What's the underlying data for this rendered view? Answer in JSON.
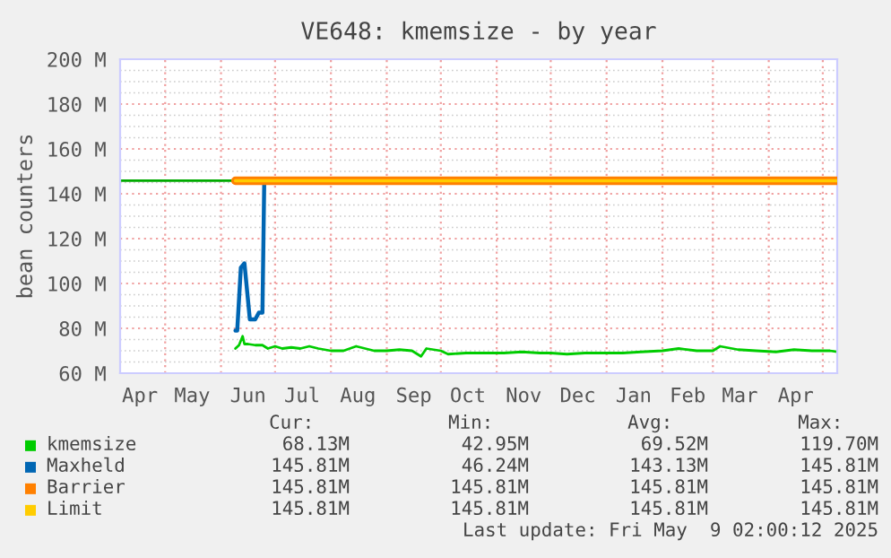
{
  "chart_data": {
    "type": "line",
    "title": "VE648: kmemsize - by year",
    "ylabel": "bean counters",
    "xlim": [
      "2024-04-06",
      "2025-05-09"
    ],
    "xticks": [
      {
        "value": "2024-04-17",
        "label": "Apr"
      },
      {
        "value": "2024-05-01",
        "label": null
      },
      {
        "value": "2024-05-16",
        "label": "May"
      },
      {
        "value": "2024-06-01",
        "label": null
      },
      {
        "value": "2024-06-16",
        "label": "Jun"
      },
      {
        "value": "2024-07-01",
        "label": null
      },
      {
        "value": "2024-07-16",
        "label": "Jul"
      },
      {
        "value": "2024-08-01",
        "label": null
      },
      {
        "value": "2024-08-16",
        "label": "Aug"
      },
      {
        "value": "2024-09-01",
        "label": null
      },
      {
        "value": "2024-09-16",
        "label": "Sep"
      },
      {
        "value": "2024-10-01",
        "label": null
      },
      {
        "value": "2024-10-16",
        "label": "Oct"
      },
      {
        "value": "2024-11-01",
        "label": null
      },
      {
        "value": "2024-11-16",
        "label": "Nov"
      },
      {
        "value": "2024-12-01",
        "label": null
      },
      {
        "value": "2024-12-16",
        "label": "Dec"
      },
      {
        "value": "2025-01-01",
        "label": null
      },
      {
        "value": "2025-01-16",
        "label": "Jan"
      },
      {
        "value": "2025-02-01",
        "label": null
      },
      {
        "value": "2025-02-15",
        "label": "Feb"
      },
      {
        "value": "2025-03-01",
        "label": null
      },
      {
        "value": "2025-03-16",
        "label": "Mar"
      },
      {
        "value": "2025-04-01",
        "label": null
      },
      {
        "value": "2025-04-16",
        "label": "Apr"
      },
      {
        "value": "2025-05-01",
        "label": null
      }
    ],
    "ylim": [
      60,
      200
    ],
    "yticks": [
      {
        "value": 60,
        "label": "60 M"
      },
      {
        "value": 80,
        "label": "80 M"
      },
      {
        "value": 100,
        "label": "100 M"
      },
      {
        "value": 120,
        "label": "120 M"
      },
      {
        "value": 140,
        "label": "140 M"
      },
      {
        "value": 160,
        "label": "160 M"
      },
      {
        "value": 180,
        "label": "180 M"
      },
      {
        "value": 200,
        "label": "200 M"
      }
    ],
    "grid": true,
    "legend": "bottom",
    "marker": "none",
    "line_style": "solid",
    "ref_lines": [
      {
        "axis": "y",
        "value": 145.81,
        "color": "#00aa00"
      }
    ],
    "series": [
      {
        "name": "kmemsize",
        "color": "#00cc00",
        "x": [
          "2024-06-09",
          "2024-06-11",
          "2024-06-13",
          "2024-06-14",
          "2024-06-16",
          "2024-06-20",
          "2024-06-24",
          "2024-06-27",
          "2024-07-01",
          "2024-07-05",
          "2024-07-10",
          "2024-07-15",
          "2024-07-20",
          "2024-07-25",
          "2024-08-01",
          "2024-08-08",
          "2024-08-15",
          "2024-08-20",
          "2024-08-25",
          "2024-09-01",
          "2024-09-08",
          "2024-09-15",
          "2024-09-20",
          "2024-09-23",
          "2024-10-01",
          "2024-10-05",
          "2024-10-15",
          "2024-10-25",
          "2024-11-05",
          "2024-11-15",
          "2024-11-25",
          "2024-12-01",
          "2024-12-10",
          "2024-12-20",
          "2025-01-01",
          "2025-01-10",
          "2025-01-20",
          "2025-02-01",
          "2025-02-10",
          "2025-02-20",
          "2025-03-01",
          "2025-03-05",
          "2025-03-15",
          "2025-03-25",
          "2025-04-05",
          "2025-04-15",
          "2025-04-25",
          "2025-05-05",
          "2025-05-09"
        ],
        "values": [
          71,
          72.5,
          76.5,
          73,
          73,
          72.5,
          72.5,
          71,
          72,
          71,
          71.5,
          71,
          72,
          71,
          70,
          70,
          72,
          71,
          70,
          70,
          70.5,
          70,
          67.5,
          71,
          70,
          68.5,
          69,
          69,
          69,
          69.5,
          69,
          69,
          68.5,
          69,
          69,
          69,
          69.5,
          70,
          71,
          70,
          70,
          72,
          70.5,
          70,
          69.5,
          70.5,
          70,
          70,
          69.5
        ]
      },
      {
        "name": "Maxheld",
        "color": "#0066b3",
        "x": [
          "2024-06-09",
          "2024-06-10",
          "2024-06-12",
          "2024-06-14",
          "2024-06-17",
          "2024-06-20",
          "2024-06-22",
          "2024-06-24",
          "2024-06-25"
        ],
        "values": [
          79,
          79,
          107,
          109,
          84,
          84,
          87,
          87,
          145.81
        ]
      },
      {
        "name": "Barrier",
        "color": "#ff8000",
        "x": [
          "2024-06-09",
          "2025-05-09"
        ],
        "values": [
          145.81,
          145.81
        ]
      },
      {
        "name": "Limit",
        "color": "#ffcc00",
        "x": [
          "2024-06-09",
          "2025-05-09"
        ],
        "values": [
          145.81,
          145.81
        ]
      }
    ],
    "annotations": [
      "Cur:",
      "Min:",
      "Avg:",
      "Max:",
      "68.13M",
      "42.95M",
      "69.52M",
      "119.70M",
      "145.81M",
      "46.24M",
      "143.13M",
      "145.81M",
      "145.81M",
      "145.81M",
      "145.81M",
      "145.81M",
      "145.81M",
      "145.81M",
      "145.81M",
      "145.81M",
      "Last update: Fri May  9 02:00:12 2025"
    ]
  }
}
